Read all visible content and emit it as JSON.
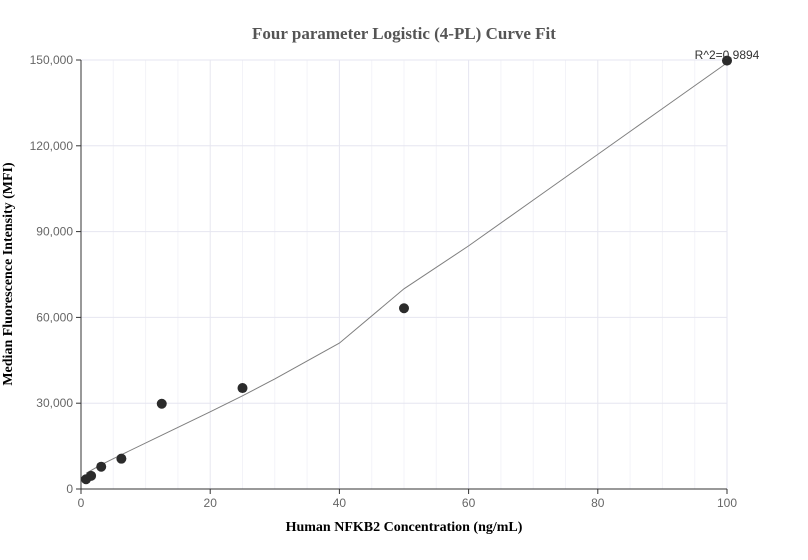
{
  "chart_data": {
    "type": "scatter",
    "title": "Four parameter Logistic (4-PL) Curve Fit",
    "xlabel": "Human NFKB2 Concentration (ng/mL)",
    "ylabel": "Median Fluorescence Intensity (MFI)",
    "xlim": [
      0,
      100
    ],
    "ylim": [
      0,
      150000
    ],
    "xticks": [
      0,
      20,
      40,
      60,
      80,
      100
    ],
    "xtick_labels": [
      "0",
      "20",
      "40",
      "60",
      "80",
      "100"
    ],
    "yticks": [
      0,
      30000,
      60000,
      90000,
      120000,
      150000
    ],
    "ytick_labels": [
      "0",
      "30,000",
      "60,000",
      "90,000",
      "120,000",
      "150,000"
    ],
    "grid": true,
    "annotation": "R^2=0.9894",
    "points": {
      "x": [
        0.78,
        1.56,
        3.13,
        6.25,
        12.5,
        25,
        50,
        100
      ],
      "y": [
        3400,
        4600,
        7800,
        10600,
        29800,
        35300,
        63200,
        149800
      ]
    },
    "fit_curve": {
      "x": [
        0.78,
        1.56,
        3.13,
        6.25,
        12.5,
        20,
        25,
        30,
        40,
        50,
        60,
        70,
        80,
        90,
        100
      ],
      "y": [
        5500,
        6500,
        8500,
        12000,
        18800,
        27000,
        32600,
        38500,
        51000,
        70000,
        85000,
        101000,
        117000,
        133000,
        149000
      ]
    },
    "colors": {
      "point": "#2b2b2b",
      "curve": "#7f7f7f",
      "grid": "#e6e6f0",
      "minor_grid": "#f3f3f8"
    }
  }
}
